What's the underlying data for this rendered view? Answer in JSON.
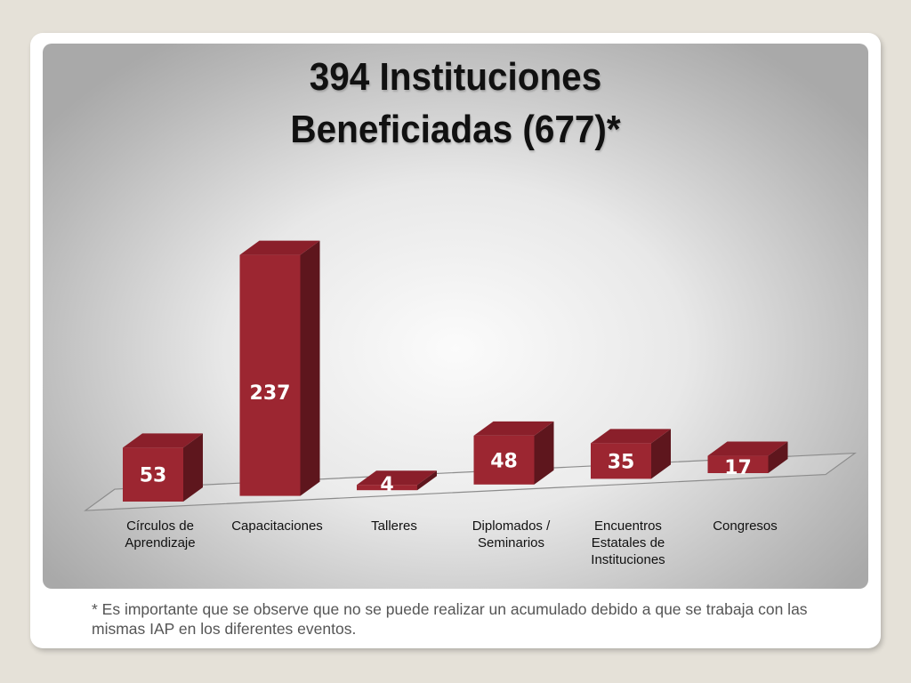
{
  "chart_data": {
    "type": "bar",
    "title": "394 Instituciones Beneficiadas (677)*",
    "title_lines": [
      "394 Instituciones",
      "Beneficiadas (677)*"
    ],
    "categories": [
      "Círculos de Aprendizaje",
      "Capacitaciones",
      "Talleres",
      "Diplomados / Seminarios",
      "Encuentros Estatales de Instituciones",
      "Congresos"
    ],
    "category_lines": [
      [
        "Círculos de",
        "Aprendizaje"
      ],
      [
        "Capacitaciones"
      ],
      [
        "Talleres"
      ],
      [
        "Diplomados /",
        "Seminarios"
      ],
      [
        "Encuentros",
        "Estatales de",
        "Instituciones"
      ],
      [
        "Congresos"
      ]
    ],
    "values": [
      53,
      237,
      4,
      48,
      35,
      17
    ],
    "data_labels": [
      "53",
      "237",
      "4",
      "48",
      "35",
      "17"
    ],
    "xlabel": "",
    "ylabel": "",
    "ylim": [
      0,
      237
    ],
    "grid": false,
    "legend": "none",
    "style": "3d-column",
    "colors": {
      "bar_front": "#9c2631",
      "bar_top": "#8a1f2a",
      "bar_side": "#5e161d",
      "label": "#ffffff"
    }
  },
  "footnote": "* Es importante que se observe que no se puede realizar un acumulado debido a que se trabaja con las mismas IAP en los diferentes eventos."
}
